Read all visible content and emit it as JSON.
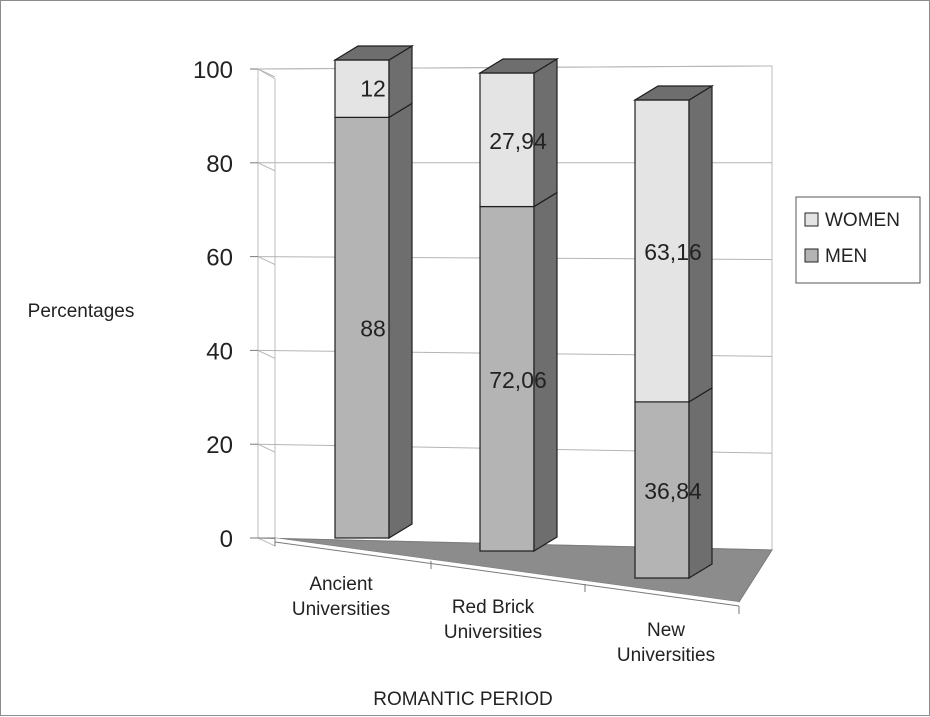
{
  "chart_data": {
    "type": "bar",
    "stacked": true,
    "three_d": true,
    "title": "",
    "xlabel": "ROMANTIC PERIOD",
    "ylabel": "Percentages",
    "ylim": [
      0,
      100
    ],
    "yticks": [
      "0",
      "20",
      "40",
      "60",
      "80",
      "100"
    ],
    "categories": [
      "Ancient Universities",
      "Red Brick Universities",
      "New Universities"
    ],
    "category_lines": [
      [
        "Ancient",
        "Universities"
      ],
      [
        "Red Brick",
        "Universities"
      ],
      [
        "New",
        "Universities"
      ]
    ],
    "series": [
      {
        "name": "MEN",
        "values": [
          88,
          72.06,
          36.84
        ],
        "labels": [
          "88",
          "72,06",
          "36,84"
        ],
        "color": "#b4b4b4"
      },
      {
        "name": "WOMEN",
        "values": [
          12,
          27.94,
          63.16
        ],
        "labels": [
          "12",
          "27,94",
          "63,16"
        ],
        "color": "#e4e4e4"
      }
    ],
    "legend": {
      "position": "right",
      "order": [
        "WOMEN",
        "MEN"
      ]
    },
    "grid": true,
    "colors": {
      "floor": "#8c8c8c",
      "wall": "#ffffff",
      "gridline": "#b4b4b4",
      "bar_side": "#6e6e6e",
      "bar_top": "#6e6e6e"
    }
  }
}
